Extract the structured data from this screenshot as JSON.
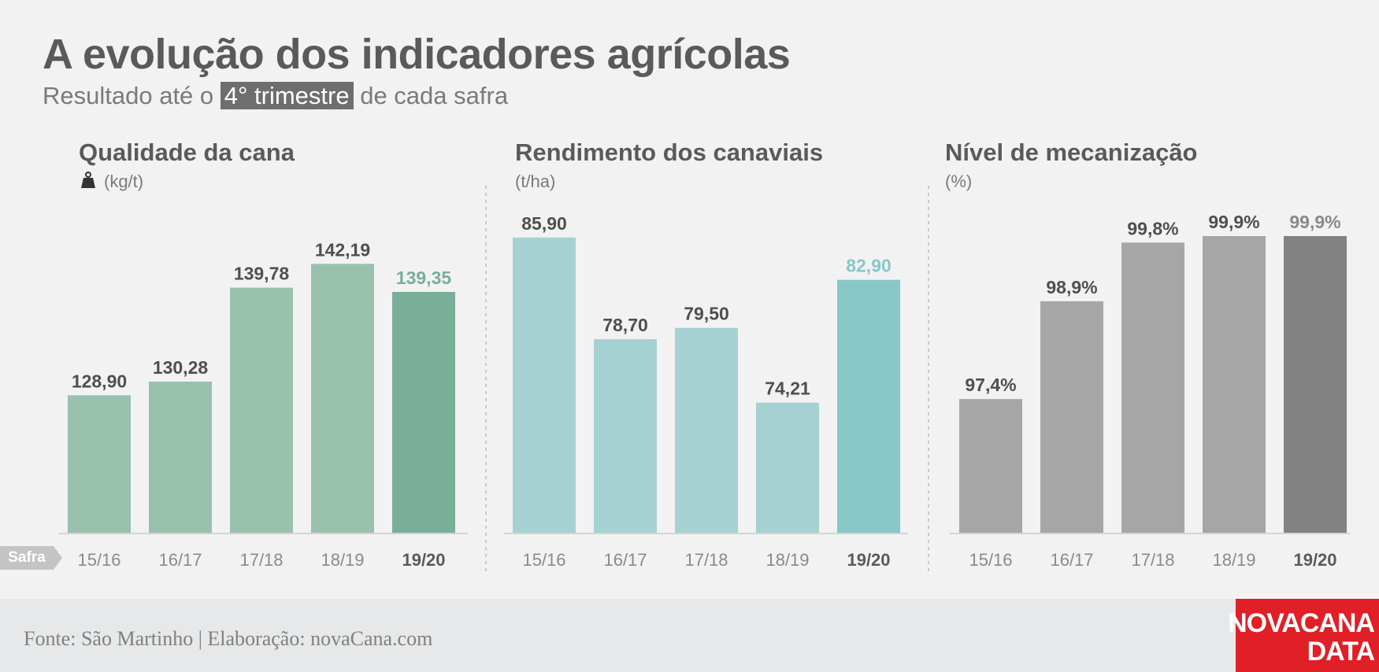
{
  "header": {
    "title": "A evolução dos indicadores agrícolas",
    "subtitle_before": "Resultado até o ",
    "subtitle_highlight": "4° trimestre",
    "subtitle_after": " de cada safra"
  },
  "axis_tag": "Safra",
  "footer": {
    "source": "Fonte: São Martinho | Elaboração: novaCana.com"
  },
  "logo": {
    "line1": "NOVACANA",
    "line2": "DATA"
  },
  "chart_data": [
    {
      "type": "bar",
      "title": "Qualidade da cana",
      "unit": "(kg/t)",
      "icon": "weight-icon",
      "categories": [
        "15/16",
        "16/17",
        "17/18",
        "18/19",
        "19/20"
      ],
      "values": [
        128.9,
        130.28,
        139.78,
        142.19,
        139.35
      ],
      "labels": [
        "128,90",
        "130,28",
        "139,78",
        "142,19",
        "139,35"
      ],
      "ylim": [
        115,
        145
      ],
      "bar_color": "#9ac0ae",
      "highlight_color": "#79ae98",
      "highlight_label_color": "#79ae98",
      "grid": false
    },
    {
      "type": "bar",
      "title": "Rendimento dos canaviais",
      "unit": "(t/ha)",
      "categories": [
        "15/16",
        "16/17",
        "17/18",
        "18/19",
        "19/20"
      ],
      "values": [
        85.9,
        78.7,
        79.5,
        74.21,
        82.9
      ],
      "labels": [
        "85,90",
        "78,70",
        "79,50",
        "74,21",
        "82,90"
      ],
      "ylim": [
        65,
        86
      ],
      "bar_color": "#a6d1d2",
      "highlight_color": "#88c7c8",
      "highlight_label_color": "#88c7c8",
      "grid": false
    },
    {
      "type": "bar",
      "title": "Nível de mecanização",
      "unit": "(%)",
      "categories": [
        "15/16",
        "16/17",
        "17/18",
        "18/19",
        "19/20"
      ],
      "values": [
        97.4,
        98.9,
        99.8,
        99.9,
        99.9
      ],
      "labels": [
        "97,4%",
        "98,9%",
        "99,8%",
        "99,9%",
        "99,9%"
      ],
      "ylim": [
        95.35,
        99.9
      ],
      "bar_color": "#a7a6a6",
      "highlight_color": "#818281",
      "highlight_label_color": "#8a8a8a",
      "grid": false
    }
  ]
}
